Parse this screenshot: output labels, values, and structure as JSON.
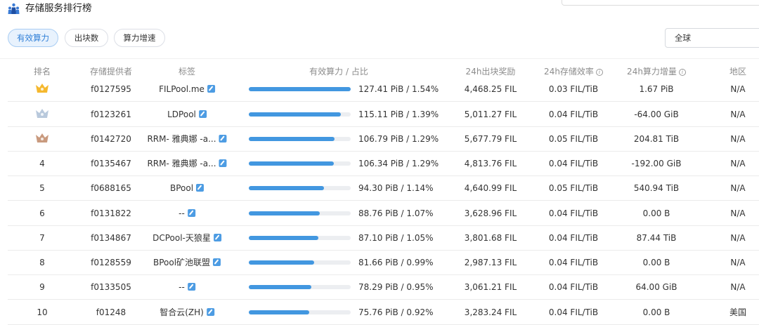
{
  "header": {
    "title": "存储服务排行榜",
    "tabs": [
      {
        "label": "有效算力",
        "active": true
      },
      {
        "label": "出块数",
        "active": false
      },
      {
        "label": "算力增速",
        "active": false
      }
    ],
    "region_select": "全球"
  },
  "table": {
    "columns": [
      "排名",
      "存储提供者",
      "标签",
      "有效算力 / 占比",
      "24h出块奖励",
      "24h存储效率",
      "24h算力增量",
      "地区"
    ],
    "rows": [
      {
        "rank": "",
        "crown": "gold",
        "provider": "f0127595",
        "tag": "FILPool.me",
        "bar_fraction": 1.0,
        "power": "127.41 PiB / 1.54%",
        "reward": "4,468.25 FIL",
        "efficiency": "0.03 FIL/TiB",
        "increment": "1.67 PiB",
        "region": "N/A"
      },
      {
        "rank": "",
        "crown": "silver",
        "provider": "f0123261",
        "tag": "LDPool",
        "bar_fraction": 0.903,
        "power": "115.11 PiB / 1.39%",
        "reward": "5,011.27 FIL",
        "efficiency": "0.04 FIL/TiB",
        "increment": "-64.00 GiB",
        "region": "N/A"
      },
      {
        "rank": "",
        "crown": "bronze",
        "provider": "f0142720",
        "tag": "RRM- 雅典娜 -a...",
        "bar_fraction": 0.838,
        "power": "106.79 PiB / 1.29%",
        "reward": "5,677.79 FIL",
        "efficiency": "0.05 FIL/TiB",
        "increment": "204.81 TiB",
        "region": "N/A"
      },
      {
        "rank": "4",
        "crown": "",
        "provider": "f0135467",
        "tag": "RRM- 雅典娜 -a...",
        "bar_fraction": 0.835,
        "power": "106.34 PiB / 1.29%",
        "reward": "4,813.76 FIL",
        "efficiency": "0.04 FIL/TiB",
        "increment": "-192.00 GiB",
        "region": "N/A"
      },
      {
        "rank": "5",
        "crown": "",
        "provider": "f0688165",
        "tag": "BPool",
        "bar_fraction": 0.74,
        "power": "94.30 PiB / 1.14%",
        "reward": "4,640.99 FIL",
        "efficiency": "0.05 FIL/TiB",
        "increment": "540.94 TiB",
        "region": "N/A"
      },
      {
        "rank": "6",
        "crown": "",
        "provider": "f0131822",
        "tag": "--",
        "bar_fraction": 0.697,
        "power": "88.76 PiB / 1.07%",
        "reward": "3,628.96 FIL",
        "efficiency": "0.04 FIL/TiB",
        "increment": "0.00 B",
        "region": "N/A"
      },
      {
        "rank": "7",
        "crown": "",
        "provider": "f0134867",
        "tag": "DCPool-天狼星",
        "bar_fraction": 0.684,
        "power": "87.10 PiB / 1.05%",
        "reward": "3,801.68 FIL",
        "efficiency": "0.04 FIL/TiB",
        "increment": "87.44 TiB",
        "region": "N/A"
      },
      {
        "rank": "8",
        "crown": "",
        "provider": "f0128559",
        "tag": "BPool矿池联盟",
        "bar_fraction": 0.641,
        "power": "81.66 PiB / 0.99%",
        "reward": "2,987.13 FIL",
        "efficiency": "0.04 FIL/TiB",
        "increment": "0.00 B",
        "region": "N/A"
      },
      {
        "rank": "9",
        "crown": "",
        "provider": "f0133505",
        "tag": "--",
        "bar_fraction": 0.614,
        "power": "78.29 PiB / 0.95%",
        "reward": "3,061.21 FIL",
        "efficiency": "0.04 FIL/TiB",
        "increment": "64.00 GiB",
        "region": "N/A"
      },
      {
        "rank": "10",
        "crown": "",
        "provider": "f01248",
        "tag": "智合云(ZH)",
        "bar_fraction": 0.595,
        "power": "75.76 PiB / 0.92%",
        "reward": "3,283.24 FIL",
        "efficiency": "0.04 FIL/TiB",
        "increment": "0.00 B",
        "region": "美国"
      }
    ]
  },
  "colors": {
    "accent": "#4297e0",
    "gold": "#f5b82e",
    "silver": "#b9c9dc",
    "bronze": "#c99a7e"
  }
}
